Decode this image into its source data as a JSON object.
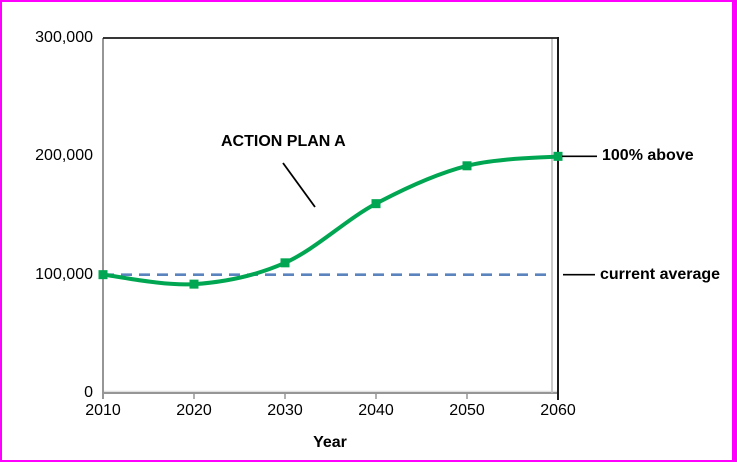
{
  "window": {
    "background": "#FFFFFF",
    "frame_border_color": "#FF00FF"
  },
  "chart_data": {
    "type": "line",
    "title": "",
    "xlabel": "Year",
    "ylabel": "",
    "x": [
      2010,
      2020,
      2030,
      2040,
      2050,
      2060
    ],
    "xlim": [
      2010,
      2060
    ],
    "ylim": [
      0,
      300000
    ],
    "series": [
      {
        "name": "ACTION PLAN A",
        "values": [
          100000,
          92000,
          110000,
          160000,
          192000,
          200000
        ],
        "color": "#00A651",
        "marker": "square",
        "line_style": "smooth"
      }
    ],
    "reference_line": {
      "label": "current average",
      "value": 100000,
      "color": "#5B83BE",
      "style": "dashed"
    },
    "yticks": [
      {
        "value": 0,
        "label": "0"
      },
      {
        "value": 100000,
        "label": "100,000"
      },
      {
        "value": 200000,
        "label": "200,000"
      },
      {
        "value": 300000,
        "label": "300,000"
      }
    ],
    "xticks": [
      {
        "value": 2010,
        "label": "2010"
      },
      {
        "value": 2020,
        "label": "2020"
      },
      {
        "value": 2030,
        "label": "2030"
      },
      {
        "value": 2040,
        "label": "2040"
      },
      {
        "value": 2050,
        "label": "2050"
      },
      {
        "value": 2060,
        "label": "2060"
      }
    ],
    "grid": false,
    "legend_position": "none",
    "axis_color": "#969696",
    "plot_border_color": "#1A1A1A",
    "annotations": [
      {
        "id": "action-plan-label",
        "text": "ACTION PLAN A"
      },
      {
        "id": "pct-above-label",
        "text": "100% above"
      },
      {
        "id": "current-average-label",
        "text": "current average"
      }
    ]
  }
}
